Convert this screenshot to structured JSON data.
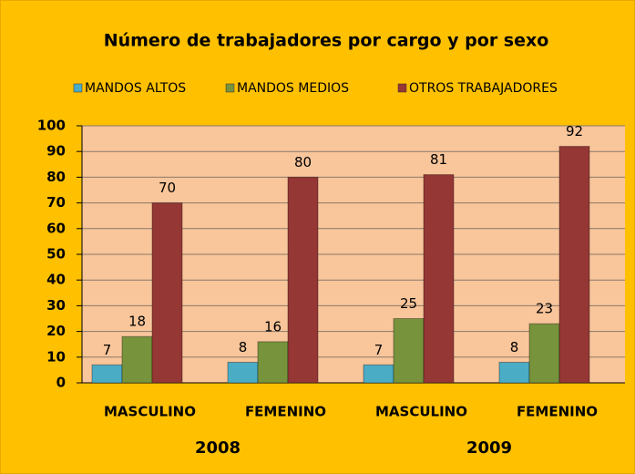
{
  "chart_data": {
    "type": "bar",
    "title": "Número de trabajadores por cargo y por sexo",
    "categories": [
      "MASCULINO",
      "FEMENINO",
      "MASCULINO",
      "FEMENINO"
    ],
    "category_groups": [
      "2008",
      "2009"
    ],
    "series": [
      {
        "name": "MANDOS ALTOS",
        "color": "#4BACC6",
        "values": [
          7,
          8,
          7,
          8
        ]
      },
      {
        "name": "MANDOS MEDIOS",
        "color": "#77933C",
        "values": [
          18,
          16,
          25,
          23
        ]
      },
      {
        "name": "OTROS TRABAJADORES",
        "color": "#953735",
        "values": [
          70,
          80,
          81,
          92
        ]
      }
    ],
    "ylim": [
      0,
      100
    ],
    "yticks": [
      0,
      10,
      20,
      30,
      40,
      50,
      60,
      70,
      80,
      90,
      100
    ],
    "grid": true,
    "legend": "top"
  }
}
